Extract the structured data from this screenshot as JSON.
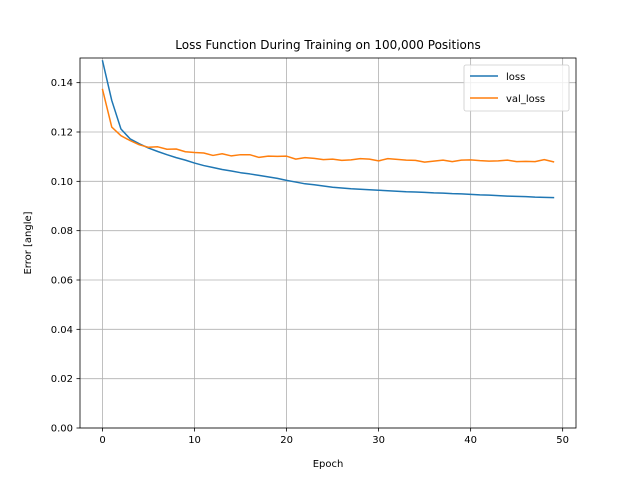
{
  "chart_data": {
    "type": "line",
    "title": "Loss Function During Training on 100,000 Positions",
    "xlabel": "Epoch",
    "ylabel": "Error [angle]",
    "xlim": [
      -2.45,
      51.45
    ],
    "ylim": [
      0.0,
      0.15
    ],
    "xticks": [
      0,
      10,
      20,
      30,
      40,
      50
    ],
    "yticks": [
      0.0,
      0.02,
      0.04,
      0.06,
      0.08,
      0.1,
      0.12,
      0.14
    ],
    "ytick_labels": [
      "0.00",
      "0.02",
      "0.04",
      "0.06",
      "0.08",
      "0.10",
      "0.12",
      "0.14"
    ],
    "xtick_labels": [
      "0",
      "10",
      "20",
      "30",
      "40",
      "50"
    ],
    "grid": true,
    "legend_position": "top-right",
    "x": [
      0,
      1,
      2,
      3,
      4,
      5,
      6,
      7,
      8,
      9,
      10,
      11,
      12,
      13,
      14,
      15,
      16,
      17,
      18,
      19,
      20,
      21,
      22,
      23,
      24,
      25,
      26,
      27,
      28,
      29,
      30,
      31,
      32,
      33,
      34,
      35,
      36,
      37,
      38,
      39,
      40,
      41,
      42,
      43,
      44,
      45,
      46,
      47,
      48,
      49
    ],
    "series": [
      {
        "name": "loss",
        "color": "#1f77b4",
        "values": [
          0.1488,
          0.1328,
          0.1212,
          0.1172,
          0.1152,
          0.1135,
          0.1121,
          0.1108,
          0.1096,
          0.1086,
          0.1074,
          0.1064,
          0.1056,
          0.1048,
          0.1042,
          0.1035,
          0.103,
          0.1024,
          0.1018,
          0.1012,
          0.1004,
          0.0997,
          0.099,
          0.0986,
          0.0981,
          0.0976,
          0.0973,
          0.097,
          0.0968,
          0.0966,
          0.0964,
          0.0962,
          0.096,
          0.0958,
          0.0957,
          0.0955,
          0.0953,
          0.0952,
          0.095,
          0.0949,
          0.0947,
          0.0945,
          0.0944,
          0.0942,
          0.094,
          0.0939,
          0.0938,
          0.0936,
          0.0935,
          0.0934
        ]
      },
      {
        "name": "val_loss",
        "color": "#ff7f0e",
        "values": [
          0.1372,
          0.122,
          0.1185,
          0.1165,
          0.1148,
          0.1138,
          0.114,
          0.113,
          0.1131,
          0.112,
          0.1117,
          0.1115,
          0.1105,
          0.1112,
          0.1103,
          0.1108,
          0.1108,
          0.1097,
          0.1102,
          0.1101,
          0.1102,
          0.109,
          0.1096,
          0.1093,
          0.1088,
          0.109,
          0.1085,
          0.1087,
          0.1092,
          0.109,
          0.1083,
          0.1092,
          0.1089,
          0.1086,
          0.1085,
          0.1078,
          0.1082,
          0.1086,
          0.108,
          0.1086,
          0.1087,
          0.1084,
          0.1082,
          0.1083,
          0.1086,
          0.108,
          0.1081,
          0.108,
          0.1088,
          0.1079
        ]
      }
    ]
  }
}
